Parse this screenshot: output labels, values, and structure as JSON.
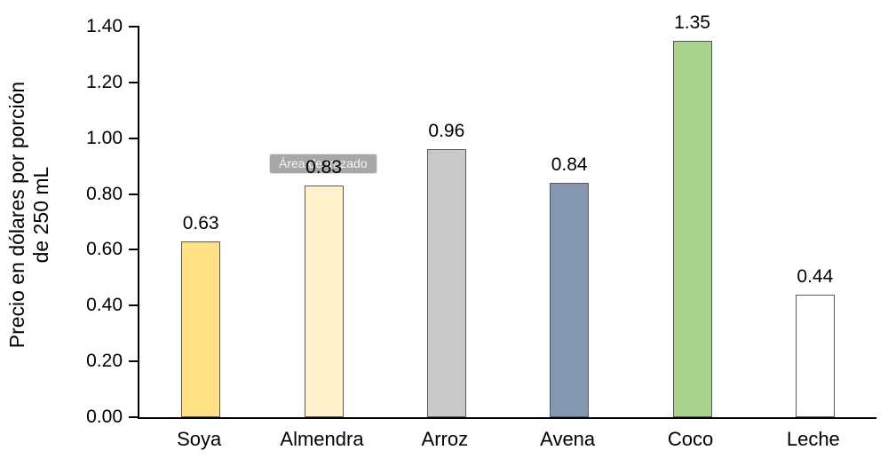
{
  "chart_data": {
    "type": "bar",
    "title": "",
    "categories": [
      "Soya",
      "Almendra",
      "Arroz",
      "Avena",
      "Coco",
      "Leche"
    ],
    "values": [
      0.63,
      0.83,
      0.96,
      0.84,
      1.35,
      0.44
    ],
    "value_labels": [
      "0.63",
      "0.83",
      "0.96",
      "0.84",
      "1.35",
      "0.44"
    ],
    "bar_colors": [
      "#FFE285",
      "#FFF2CC",
      "#C9C9C9",
      "#8497B0",
      "#A9D18E",
      "#FFFFFF"
    ],
    "bar_border_color": "#595959",
    "xlabel": "",
    "ylabel": "Precio en dólares por porción de 250 mL",
    "ylabel_line1": "Precio en dólares por porción",
    "ylabel_line2": "de 250 mL",
    "ylim": [
      0,
      1.4
    ],
    "yticks": [
      "0.00",
      "0.20",
      "0.40",
      "0.60",
      "0.80",
      "1.00",
      "1.20",
      "1.40"
    ],
    "grid": false,
    "legend": false,
    "axis_color": "#000000",
    "overlay": {
      "tooltip_text": "Área de trazado"
    }
  }
}
